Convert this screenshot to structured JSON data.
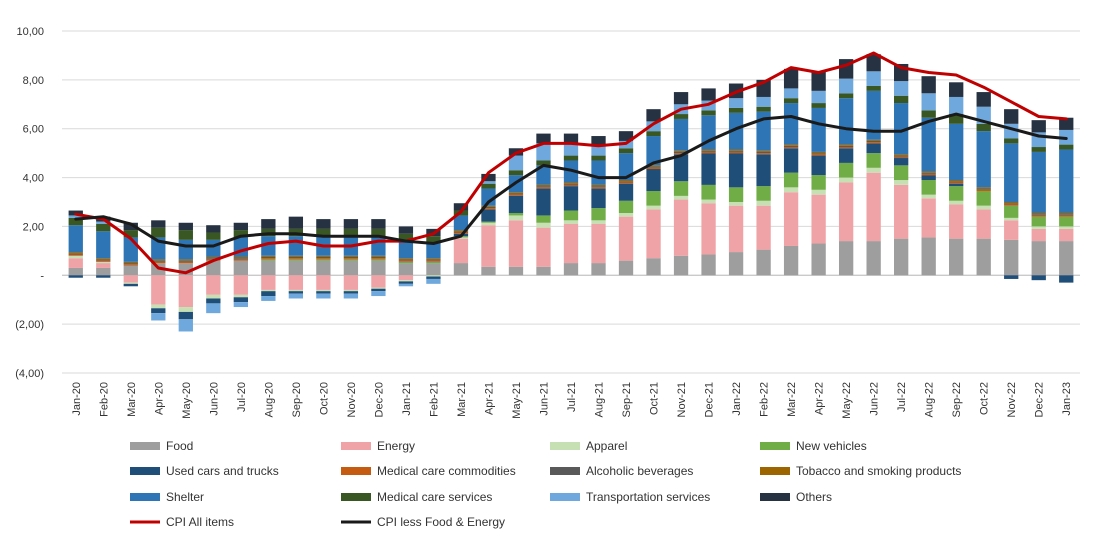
{
  "chart_data": {
    "type": "bar",
    "stacked": true,
    "grid": "horizontal",
    "legend_position": "bottom",
    "ylim": [
      -4,
      10
    ],
    "yticks": [
      -4,
      -2,
      0,
      2,
      4,
      6,
      8,
      10
    ],
    "ytick_labels": [
      "(4,00)",
      "(2,00)",
      "-",
      "2,00",
      "4,00",
      "6,00",
      "8,00",
      "10,00"
    ],
    "categories": [
      "Jan-20",
      "Feb-20",
      "Mar-20",
      "Apr-20",
      "May-20",
      "Jun-20",
      "Jul-20",
      "Aug-20",
      "Sep-20",
      "Oct-20",
      "Nov-20",
      "Dec-20",
      "Jan-21",
      "Feb-21",
      "Mar-21",
      "Apr-21",
      "May-21",
      "Jun-21",
      "Jul-21",
      "Aug-21",
      "Sep-21",
      "Oct-21",
      "Nov-21",
      "Dec-21",
      "Jan-22",
      "Feb-22",
      "Mar-22",
      "Apr-22",
      "May-22",
      "Jun-22",
      "Jul-22",
      "Aug-22",
      "Sep-22",
      "Oct-22",
      "Nov-22",
      "Dec-22",
      "Jan-23"
    ],
    "series": [
      {
        "name": "Food",
        "color": "#9e9e9e",
        "values": [
          0.3,
          0.3,
          0.4,
          0.5,
          0.5,
          0.6,
          0.6,
          0.6,
          0.6,
          0.6,
          0.6,
          0.6,
          0.5,
          0.5,
          0.5,
          0.35,
          0.35,
          0.35,
          0.5,
          0.5,
          0.6,
          0.7,
          0.8,
          0.85,
          0.95,
          1.05,
          1.2,
          1.3,
          1.4,
          1.4,
          1.5,
          1.55,
          1.5,
          1.5,
          1.45,
          1.4,
          1.4
        ]
      },
      {
        "name": "Energy",
        "color": "#f0a3a6",
        "values": [
          0.4,
          0.2,
          -0.3,
          -1.2,
          -1.3,
          -0.8,
          -0.8,
          -0.6,
          -0.6,
          -0.6,
          -0.6,
          -0.5,
          -0.2,
          0.0,
          1.0,
          1.7,
          1.9,
          1.6,
          1.6,
          1.6,
          1.8,
          2.0,
          2.3,
          2.1,
          1.9,
          1.8,
          2.2,
          2.0,
          2.4,
          2.8,
          2.2,
          1.6,
          1.4,
          1.2,
          0.8,
          0.5,
          0.5
        ]
      },
      {
        "name": "Apparel",
        "color": "#c6e0b4",
        "values": [
          0.1,
          0.05,
          -0.05,
          -0.15,
          -0.2,
          -0.15,
          -0.1,
          -0.05,
          -0.05,
          -0.05,
          -0.05,
          -0.05,
          -0.05,
          -0.05,
          0.05,
          0.1,
          0.2,
          0.2,
          0.15,
          0.15,
          0.15,
          0.15,
          0.15,
          0.15,
          0.15,
          0.2,
          0.2,
          0.2,
          0.2,
          0.2,
          0.2,
          0.15,
          0.15,
          0.15,
          0.1,
          0.1,
          0.1
        ]
      },
      {
        "name": "New vehicles",
        "color": "#70ad47",
        "values": [
          0.0,
          0.0,
          0.0,
          0.0,
          0.0,
          0.0,
          0.0,
          0.05,
          0.05,
          0.05,
          0.05,
          0.05,
          0.05,
          0.05,
          0.05,
          0.05,
          0.1,
          0.3,
          0.4,
          0.5,
          0.5,
          0.6,
          0.6,
          0.6,
          0.6,
          0.6,
          0.6,
          0.6,
          0.6,
          0.6,
          0.6,
          0.6,
          0.6,
          0.6,
          0.5,
          0.4,
          0.4
        ]
      },
      {
        "name": "Used cars and trucks",
        "color": "#1f4e79",
        "values": [
          -0.1,
          -0.1,
          -0.1,
          -0.2,
          -0.3,
          -0.2,
          -0.2,
          -0.2,
          -0.1,
          -0.1,
          -0.1,
          -0.1,
          -0.1,
          -0.1,
          0.1,
          0.5,
          0.7,
          1.1,
          1.0,
          0.8,
          0.7,
          0.9,
          1.1,
          1.3,
          1.4,
          1.3,
          1.0,
          0.8,
          0.6,
          0.4,
          0.3,
          0.2,
          0.1,
          0.0,
          -0.15,
          -0.2,
          -0.3
        ]
      },
      {
        "name": "Medical care commodities",
        "color": "#c55a11",
        "values": [
          0.05,
          0.05,
          0.05,
          0.05,
          0.05,
          0.05,
          0.05,
          0.05,
          0.05,
          0.05,
          0.05,
          0.05,
          0.05,
          0.05,
          0.05,
          0.05,
          0.05,
          0.05,
          0.05,
          0.05,
          0.05,
          0.05,
          0.05,
          0.05,
          0.05,
          0.05,
          0.05,
          0.05,
          0.05,
          0.05,
          0.05,
          0.05,
          0.05,
          0.05,
          0.05,
          0.05,
          0.05
        ]
      },
      {
        "name": "Alcoholic beverages",
        "color": "#595959",
        "values": [
          0.05,
          0.05,
          0.05,
          0.05,
          0.05,
          0.05,
          0.05,
          0.05,
          0.05,
          0.05,
          0.05,
          0.05,
          0.05,
          0.05,
          0.05,
          0.05,
          0.05,
          0.05,
          0.05,
          0.05,
          0.05,
          0.05,
          0.05,
          0.05,
          0.05,
          0.05,
          0.05,
          0.05,
          0.05,
          0.05,
          0.05,
          0.05,
          0.05,
          0.05,
          0.05,
          0.05,
          0.05
        ]
      },
      {
        "name": "Tobacco and smoking products",
        "color": "#9c6500",
        "values": [
          0.05,
          0.05,
          0.05,
          0.05,
          0.05,
          0.05,
          0.05,
          0.05,
          0.05,
          0.05,
          0.05,
          0.05,
          0.05,
          0.05,
          0.05,
          0.05,
          0.05,
          0.05,
          0.05,
          0.05,
          0.05,
          0.05,
          0.05,
          0.05,
          0.05,
          0.05,
          0.05,
          0.05,
          0.05,
          0.05,
          0.05,
          0.05,
          0.05,
          0.05,
          0.05,
          0.05,
          0.05
        ]
      },
      {
        "name": "Shelter",
        "color": "#2e75b6",
        "values": [
          1.1,
          1.1,
          1.0,
          0.9,
          0.8,
          0.7,
          0.8,
          0.8,
          0.8,
          0.8,
          0.8,
          0.8,
          0.7,
          0.6,
          0.6,
          0.7,
          0.7,
          0.8,
          0.9,
          1.0,
          1.1,
          1.2,
          1.3,
          1.4,
          1.5,
          1.6,
          1.7,
          1.8,
          1.9,
          2.0,
          2.1,
          2.2,
          2.3,
          2.3,
          2.4,
          2.5,
          2.6
        ]
      },
      {
        "name": "Medical care services",
        "color": "#385723",
        "values": [
          0.3,
          0.3,
          0.3,
          0.4,
          0.4,
          0.3,
          0.3,
          0.3,
          0.3,
          0.3,
          0.3,
          0.3,
          0.3,
          0.3,
          0.2,
          0.2,
          0.2,
          0.2,
          0.2,
          0.2,
          0.2,
          0.2,
          0.2,
          0.2,
          0.2,
          0.2,
          0.2,
          0.2,
          0.2,
          0.2,
          0.3,
          0.3,
          0.4,
          0.3,
          0.2,
          0.2,
          0.2
        ]
      },
      {
        "name": "Transportation services",
        "color": "#6fa8dc",
        "values": [
          0.1,
          0.1,
          0.0,
          -0.3,
          -0.5,
          -0.4,
          -0.2,
          -0.2,
          -0.2,
          -0.2,
          -0.2,
          -0.2,
          -0.1,
          -0.2,
          0.0,
          0.1,
          0.6,
          0.7,
          0.5,
          0.4,
          0.3,
          0.4,
          0.4,
          0.4,
          0.4,
          0.4,
          0.4,
          0.5,
          0.6,
          0.6,
          0.6,
          0.7,
          0.7,
          0.7,
          0.6,
          0.6,
          0.6
        ]
      },
      {
        "name": "Others",
        "color": "#263241",
        "values": [
          0.2,
          0.2,
          0.3,
          0.3,
          0.3,
          0.3,
          0.3,
          0.4,
          0.5,
          0.4,
          0.4,
          0.4,
          0.3,
          0.3,
          0.3,
          0.3,
          0.3,
          0.4,
          0.4,
          0.4,
          0.4,
          0.5,
          0.5,
          0.5,
          0.6,
          0.7,
          0.8,
          0.8,
          0.8,
          0.7,
          0.7,
          0.7,
          0.6,
          0.6,
          0.6,
          0.5,
          0.5
        ]
      }
    ],
    "lines": [
      {
        "name": "CPI All items",
        "color": "#c00000",
        "values": [
          2.5,
          2.3,
          1.5,
          0.3,
          0.1,
          0.6,
          1.0,
          1.3,
          1.4,
          1.2,
          1.2,
          1.4,
          1.4,
          1.7,
          2.6,
          4.2,
          5.0,
          5.4,
          5.4,
          5.3,
          5.4,
          6.2,
          6.8,
          7.0,
          7.5,
          7.9,
          8.5,
          8.3,
          8.6,
          9.1,
          8.5,
          8.3,
          8.2,
          7.7,
          7.1,
          6.5,
          6.4
        ]
      },
      {
        "name": "CPI less Food & Energy",
        "color": "#1a1a1a",
        "values": [
          2.3,
          2.4,
          2.1,
          1.4,
          1.2,
          1.2,
          1.6,
          1.7,
          1.7,
          1.6,
          1.6,
          1.6,
          1.4,
          1.3,
          1.6,
          3.0,
          3.8,
          4.5,
          4.3,
          4.0,
          4.0,
          4.6,
          4.9,
          5.5,
          6.0,
          6.4,
          6.5,
          6.2,
          6.0,
          5.9,
          5.9,
          6.3,
          6.6,
          6.3,
          6.0,
          5.7,
          5.6
        ]
      }
    ]
  }
}
